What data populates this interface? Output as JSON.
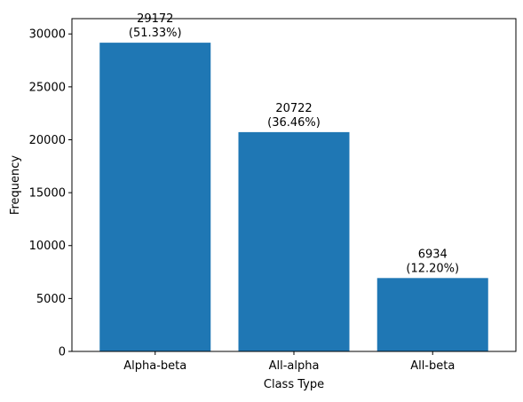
{
  "chart_data": {
    "type": "bar",
    "title": "",
    "xlabel": "Class Type",
    "ylabel": "Frequency",
    "categories": [
      "Alpha-beta",
      "All-alpha",
      "All-beta"
    ],
    "values": [
      29172,
      20722,
      6934
    ],
    "bar_labels": [
      [
        "29172",
        "(51.33%)"
      ],
      [
        "20722",
        "(36.46%)"
      ],
      [
        "6934",
        "(12.20%)"
      ]
    ],
    "ylim": [
      0,
      30000
    ],
    "yticks": [
      0,
      5000,
      10000,
      15000,
      20000,
      25000,
      30000
    ],
    "grid": false,
    "legend": "none",
    "bar_color": "#1f77b4"
  }
}
